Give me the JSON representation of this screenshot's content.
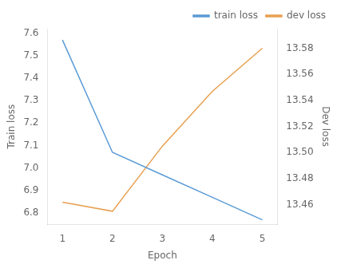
{
  "chart_data": {
    "type": "line",
    "x": [
      1,
      2,
      3,
      4,
      5
    ],
    "xlabel": "Epoch",
    "ylabel": "Train loss",
    "y2label": "Dev loss",
    "series": [
      {
        "name": "train loss",
        "color": "#5b9bd5",
        "values": [
          7.57,
          7.07,
          6.97,
          6.87,
          6.77
        ]
      },
      {
        "name": "dev loss",
        "color": "#e8a050",
        "values": [
          13.462,
          13.455,
          13.505,
          13.547,
          13.58
        ],
        "axis": "y2"
      }
    ],
    "xlim": [
      0.7,
      5.3
    ],
    "ylim": [
      6.75,
      7.62
    ],
    "y2lim": [
      13.445,
      13.595
    ],
    "xticks": [
      1,
      2,
      3,
      4,
      5
    ],
    "yticks": [
      6.8,
      6.9,
      {
        "value": 7.0,
        "label": "7.0"
      },
      7.1,
      7.2,
      7.3,
      7.4,
      7.5,
      7.6
    ],
    "y2ticks": [
      13.46,
      13.48,
      {
        "value": 13.5,
        "label": "13.50"
      },
      13.52,
      13.54,
      13.56,
      13.58
    ],
    "grid": false,
    "legend": "upper right"
  }
}
